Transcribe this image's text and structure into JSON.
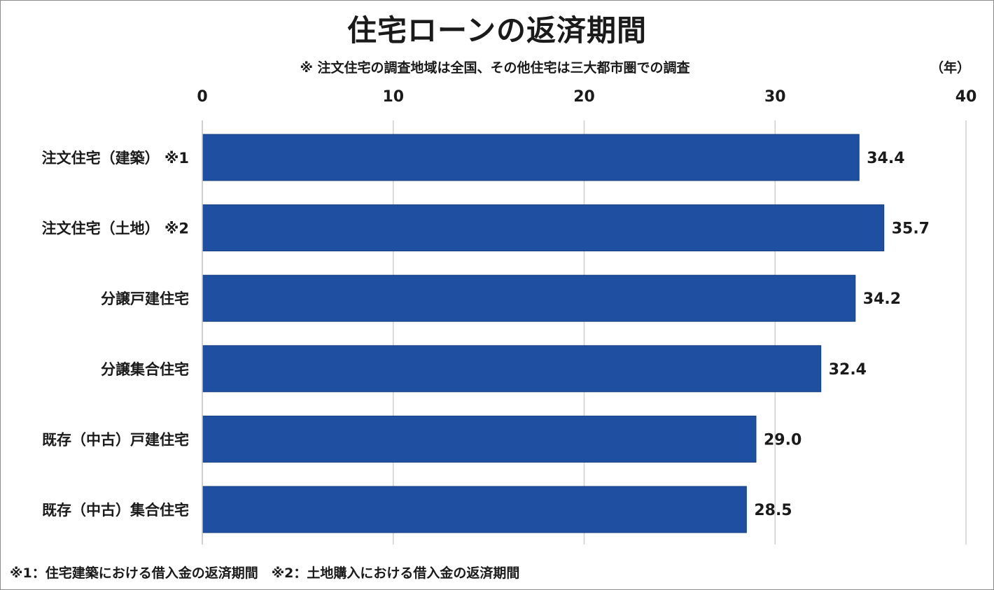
{
  "chart_data": {
    "type": "bar",
    "orientation": "horizontal",
    "title": "住宅ローンの返済期間",
    "subtitle": "※ 注文住宅の調査地域は全国、その他住宅は三大都市圏での調査",
    "unit": "（年）",
    "categories": [
      "注文住宅（建築） ※1",
      "注文住宅（土地） ※2",
      "分譲戸建住宅",
      "分譲集合住宅",
      "既存（中古）戸建住宅",
      "既存（中古）集合住宅"
    ],
    "values": [
      34.4,
      35.7,
      34.2,
      32.4,
      29.0,
      28.5
    ],
    "value_labels": [
      "34.4",
      "35.7",
      "34.2",
      "32.4",
      "29.0",
      "28.5"
    ],
    "xlim": [
      0,
      40
    ],
    "xticks": [
      0,
      10,
      20,
      30,
      40
    ],
    "xtick_labels": [
      "0",
      "10",
      "20",
      "30",
      "40"
    ],
    "x_axis_position": "top",
    "grid": true,
    "bar_color": "#1f4fa0",
    "grid_color": "#d0d0d0",
    "footnote": "※1：住宅建築における借入金の返済期間　※2：土地購入における借入金の返済期間"
  }
}
